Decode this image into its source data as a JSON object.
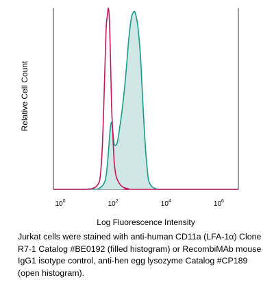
{
  "chart_data": {
    "type": "area",
    "ylabel": "Relative Cell Count",
    "xlabel": "Log Fluorescence Intensity",
    "x_scale": "log",
    "xlim": [
      1,
      10000000
    ],
    "x_ticks": [
      {
        "base": "10",
        "exp": "0",
        "value": 1
      },
      {
        "base": "10",
        "exp": "2",
        "value": 100
      },
      {
        "base": "10",
        "exp": "4",
        "value": 10000
      },
      {
        "base": "10",
        "exp": "6",
        "value": 1000000
      }
    ],
    "ylim": [
      0,
      1
    ],
    "grid": false,
    "series": [
      {
        "fill": true,
        "color": "#1a9a8a",
        "fill_color": "#cfe8e6",
        "x": [
          1,
          3,
          10,
          30,
          50,
          80,
          100,
          120,
          140,
          160,
          180,
          200,
          250,
          300,
          400,
          500,
          600,
          700,
          800,
          900,
          1000,
          1200,
          1500,
          1700,
          2000,
          2200,
          2500,
          3000,
          3500,
          4000,
          5000,
          7000,
          10000,
          20000,
          100000,
          1000000,
          10000000
        ],
        "y": [
          0,
          0,
          0,
          0.001,
          0.003,
          0.03,
          0.08,
          0.2,
          0.33,
          0.37,
          0.31,
          0.25,
          0.25,
          0.31,
          0.44,
          0.57,
          0.7,
          0.82,
          0.9,
          0.95,
          0.97,
          0.98,
          0.92,
          0.85,
          0.72,
          0.6,
          0.44,
          0.24,
          0.12,
          0.05,
          0.02,
          0.005,
          0,
          0,
          0,
          0,
          0
        ]
      },
      {
        "fill": false,
        "color": "#c2185b",
        "x": [
          1,
          10,
          30,
          50,
          60,
          70,
          80,
          90,
          100,
          110,
          120,
          130,
          140,
          150,
          160,
          180,
          200,
          230,
          270,
          320,
          400,
          500,
          700,
          1000,
          10000000
        ],
        "y": [
          0,
          0,
          0.004,
          0.03,
          0.08,
          0.22,
          0.45,
          0.7,
          0.9,
          0.96,
          1.0,
          0.95,
          0.8,
          0.62,
          0.45,
          0.28,
          0.15,
          0.08,
          0.05,
          0.03,
          0.015,
          0.008,
          0.003,
          0,
          0
        ]
      }
    ]
  },
  "caption": "Jurkat cells were stained with anti-human CD11a (LFA-1α) Clone R7-1 Catalog #BE0192 (filled histogram) or RecombiMAb mouse IgG1 isotype control, anti-hen egg lysozyme Catalog #CP189 (open histogram)."
}
